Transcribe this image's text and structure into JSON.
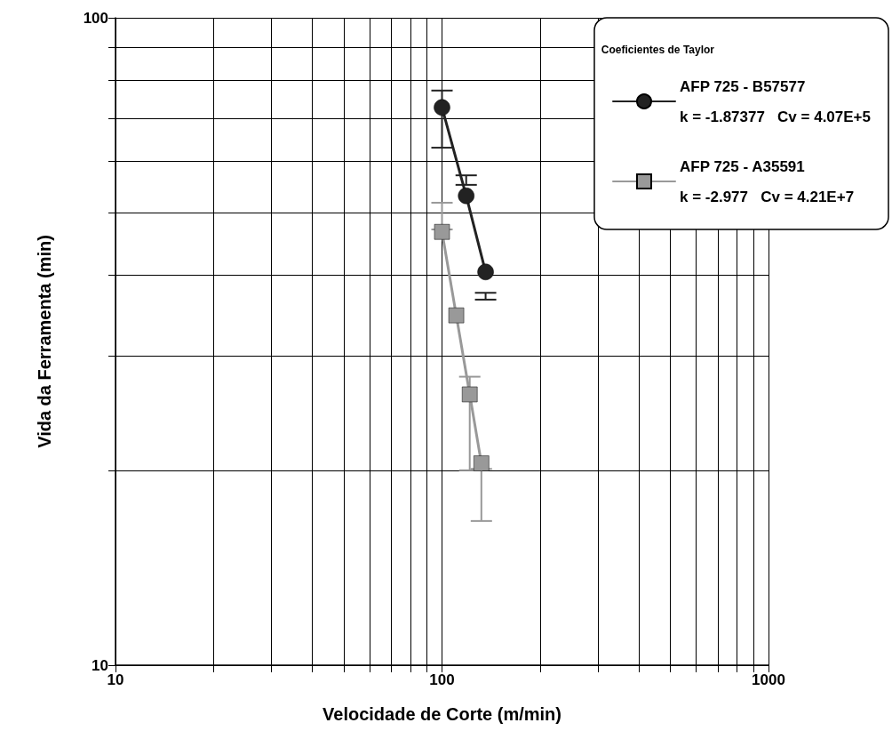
{
  "chart_data": {
    "type": "line",
    "xlabel": "Velocidade de Corte (m/min)",
    "ylabel": "Vida da Ferramenta (min)",
    "legend_title": "Coeficientes de Taylor",
    "log": "xy",
    "grid": true,
    "legend": "top right",
    "line_style": "solid",
    "xlim": [
      10,
      1000
    ],
    "ylim": [
      10,
      100
    ],
    "xticks": [
      10,
      {
        "value": 20,
        "label": null
      },
      {
        "value": 30,
        "label": null
      },
      {
        "value": 40,
        "label": null
      },
      {
        "value": 50,
        "label": null
      },
      {
        "value": 60,
        "label": null
      },
      {
        "value": 70,
        "label": null
      },
      {
        "value": 80,
        "label": null
      },
      {
        "value": 90,
        "label": null
      },
      100,
      {
        "value": 200,
        "label": null
      },
      {
        "value": 300,
        "label": null
      },
      {
        "value": 400,
        "label": null
      },
      {
        "value": 500,
        "label": null
      },
      {
        "value": 600,
        "label": null
      },
      {
        "value": 700,
        "label": null
      },
      {
        "value": 800,
        "label": null
      },
      {
        "value": 900,
        "label": null
      },
      1000
    ],
    "yticks": [
      10,
      {
        "value": 20,
        "label": null
      },
      {
        "value": 30,
        "label": null
      },
      {
        "value": 40,
        "label": null
      },
      {
        "value": 50,
        "label": null
      },
      {
        "value": 60,
        "label": null
      },
      {
        "value": 70,
        "label": null
      },
      {
        "value": 80,
        "label": null
      },
      {
        "value": 90,
        "label": null
      },
      100
    ],
    "series": [
      {
        "name": "AFP 725 - B57577\nk = -1.87377   Cv = 4.07E+5",
        "color": "#222222",
        "marker": "circle",
        "x": [
          100,
          118.6,
          136
        ],
        "values": [
          72.7,
          53.1,
          40.5
        ],
        "errors": [
          [
            63,
            77.2
          ],
          [
            55.2,
            57.1
          ],
          [
            36.7,
            37.6
          ]
        ]
      },
      {
        "name": "AFP 725 - A35591\nk = -2.977   Cv = 4.21E+7",
        "color": "#999999",
        "marker": "square",
        "x": [
          100,
          110.6,
          121.6,
          132
        ],
        "values": [
          46.7,
          34.7,
          26.2,
          20.5
        ],
        "errors": [
          [
            47.1,
            51.8
          ],
          null,
          [
            20,
            27.9
          ],
          [
            16.7,
            20.1
          ]
        ]
      }
    ]
  }
}
